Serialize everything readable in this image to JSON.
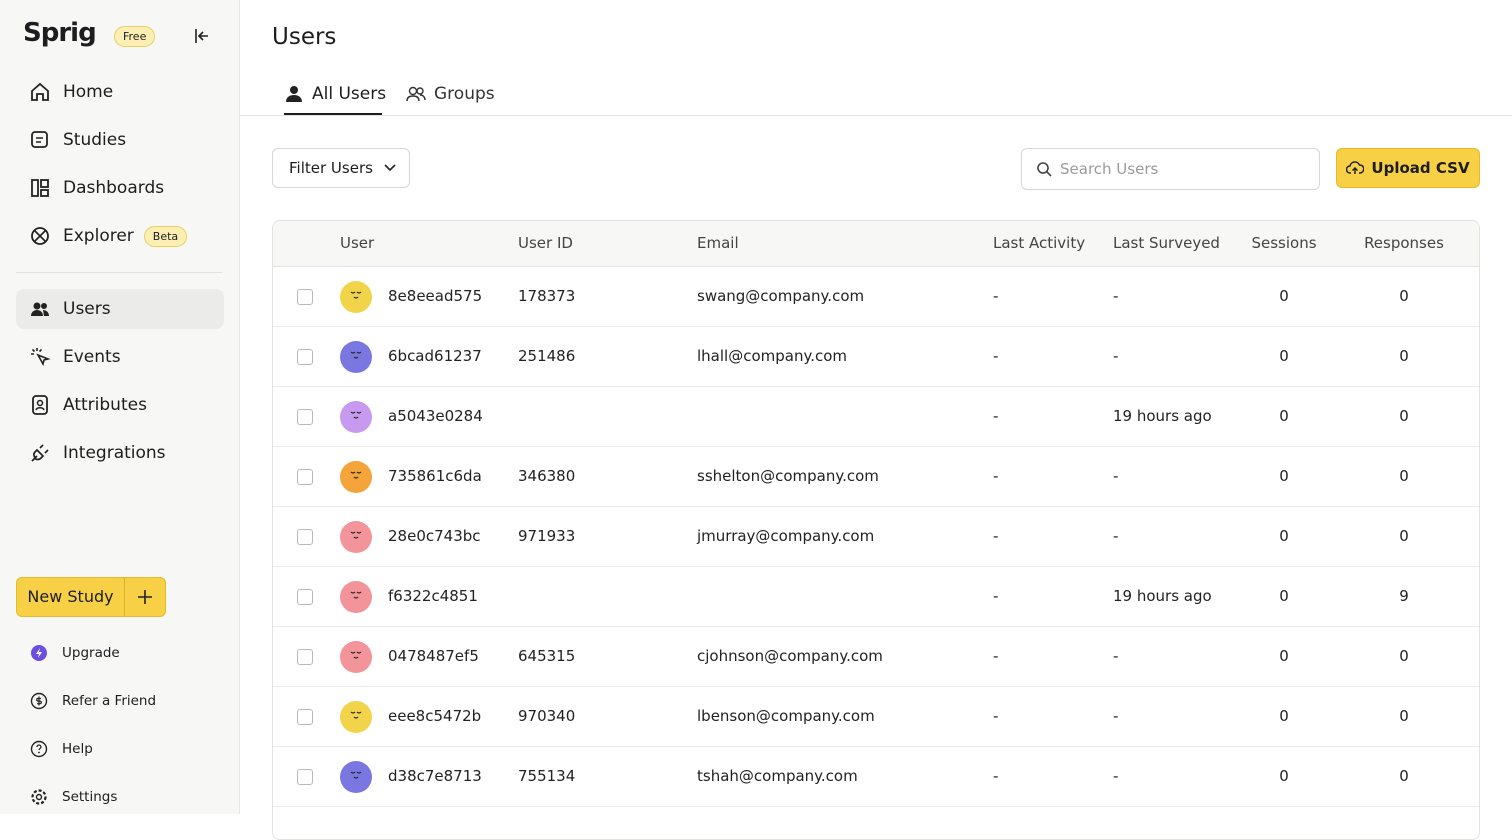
{
  "sidebar": {
    "logo": "Sprig",
    "plan_badge": "Free",
    "nav": [
      {
        "label": "Home"
      },
      {
        "label": "Studies"
      },
      {
        "label": "Dashboards"
      },
      {
        "label": "Explorer",
        "badge": "Beta"
      }
    ],
    "nav_secondary": [
      {
        "label": "Users",
        "active": true
      },
      {
        "label": "Events"
      },
      {
        "label": "Attributes"
      },
      {
        "label": "Integrations"
      }
    ],
    "new_study": "New Study",
    "footer": [
      "Upgrade",
      "Refer a Friend",
      "Help",
      "Settings"
    ]
  },
  "header": {
    "title": "Users",
    "tabs": [
      "All Users",
      "Groups"
    ]
  },
  "toolbar": {
    "filter": "Filter Users",
    "search_placeholder": "Search Users",
    "upload": "Upload CSV"
  },
  "table": {
    "columns": [
      "User",
      "User ID",
      "Email",
      "Last Activity",
      "Last Surveyed",
      "Sessions",
      "Responses"
    ],
    "rows": [
      {
        "avatar": "#f2d44a",
        "user": "8e8eead575",
        "user_id": 178373,
        "email": "swang@company.com",
        "last_activity": "-",
        "last_surveyed": "-",
        "sessions": 0,
        "responses": 0
      },
      {
        "avatar": "#7a78e0",
        "user": "6bcad61237",
        "user_id": 251486,
        "email": "lhall@company.com",
        "last_activity": "-",
        "last_surveyed": "-",
        "sessions": 0,
        "responses": 0
      },
      {
        "avatar": "#c79af0",
        "user": "a5043e0284",
        "user_id": null,
        "email": null,
        "last_activity": "-",
        "last_surveyed": "19 hours ago",
        "sessions": 0,
        "responses": 0
      },
      {
        "avatar": "#f4a43a",
        "user": "735861c6da",
        "user_id": 346380,
        "email": "sshelton@company.com",
        "last_activity": "-",
        "last_surveyed": "-",
        "sessions": 0,
        "responses": 0
      },
      {
        "avatar": "#f3949a",
        "user": "28e0c743bc",
        "user_id": 971933,
        "email": "jmurray@company.com",
        "last_activity": "-",
        "last_surveyed": "-",
        "sessions": 0,
        "responses": 0
      },
      {
        "avatar": "#f3949a",
        "user": "f6322c4851",
        "user_id": null,
        "email": null,
        "last_activity": "-",
        "last_surveyed": "19 hours ago",
        "sessions": 0,
        "responses": 9
      },
      {
        "avatar": "#f3949a",
        "user": "0478487ef5",
        "user_id": 645315,
        "email": "cjohnson@company.com",
        "last_activity": "-",
        "last_surveyed": "-",
        "sessions": 0,
        "responses": 0
      },
      {
        "avatar": "#f2d44a",
        "user": "eee8c5472b",
        "user_id": 970340,
        "email": "lbenson@company.com",
        "last_activity": "-",
        "last_surveyed": "-",
        "sessions": 0,
        "responses": 0
      },
      {
        "avatar": "#7a78e0",
        "user": "d38c7e8713",
        "user_id": 755134,
        "email": "tshah@company.com",
        "last_activity": "-",
        "last_surveyed": "-",
        "sessions": 0,
        "responses": 0
      }
    ]
  }
}
